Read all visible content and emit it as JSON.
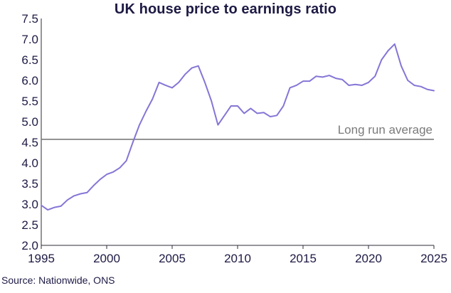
{
  "chart_data": {
    "type": "line",
    "title": "UK house price to earnings ratio",
    "source": "Source: Nationwide, ONS",
    "xlabel": "",
    "ylabel": "",
    "xlim": [
      1995,
      2025
    ],
    "ylim": [
      2.0,
      7.5
    ],
    "x_ticks": [
      1995,
      2000,
      2005,
      2010,
      2015,
      2020,
      2025
    ],
    "y_ticks": [
      "2.0",
      "2.5",
      "3.0",
      "3.5",
      "4.0",
      "4.5",
      "5.0",
      "5.5",
      "6.0",
      "6.5",
      "7.0",
      "7.5"
    ],
    "grid": false,
    "legend": "none",
    "colors": {
      "series": "#8675d6",
      "reference": "#7a7a7a",
      "axis": "#2b2b3a"
    },
    "reference_line": {
      "label": "Long run average",
      "value": 4.57
    },
    "series": [
      {
        "x": [
          1995.0,
          1995.5,
          1996.0,
          1996.5,
          1997.0,
          1997.5,
          1998.0,
          1998.5,
          1999.0,
          1999.5,
          2000.0,
          2000.5,
          2001.0,
          2001.5,
          2002.0,
          2002.5,
          2003.0,
          2003.5,
          2004.0,
          2004.5,
          2005.0,
          2005.5,
          2006.0,
          2006.5,
          2007.0,
          2007.5,
          2008.0,
          2008.5,
          2009.0,
          2009.5,
          2010.0,
          2010.5,
          2011.0,
          2011.5,
          2012.0,
          2012.5,
          2013.0,
          2013.5,
          2014.0,
          2014.5,
          2015.0,
          2015.5,
          2016.0,
          2016.5,
          2017.0,
          2017.5,
          2018.0,
          2018.5,
          2019.0,
          2019.5,
          2020.0,
          2020.5,
          2021.0,
          2021.5,
          2022.0,
          2022.5,
          2023.0,
          2023.5,
          2024.0,
          2024.5,
          2025.0
        ],
        "y": [
          2.97,
          2.86,
          2.92,
          2.95,
          3.1,
          3.2,
          3.25,
          3.28,
          3.45,
          3.6,
          3.72,
          3.78,
          3.88,
          4.05,
          4.5,
          4.92,
          5.25,
          5.55,
          5.95,
          5.88,
          5.82,
          5.95,
          6.15,
          6.3,
          6.35,
          5.95,
          5.5,
          4.92,
          5.15,
          5.38,
          5.38,
          5.2,
          5.32,
          5.2,
          5.22,
          5.12,
          5.15,
          5.38,
          5.82,
          5.88,
          5.98,
          5.98,
          6.1,
          6.08,
          6.12,
          6.05,
          6.02,
          5.88,
          5.9,
          5.88,
          5.95,
          6.1,
          6.5,
          6.72,
          6.88,
          6.35,
          6.0,
          5.88,
          5.85,
          5.78,
          5.75
        ]
      }
    ]
  }
}
